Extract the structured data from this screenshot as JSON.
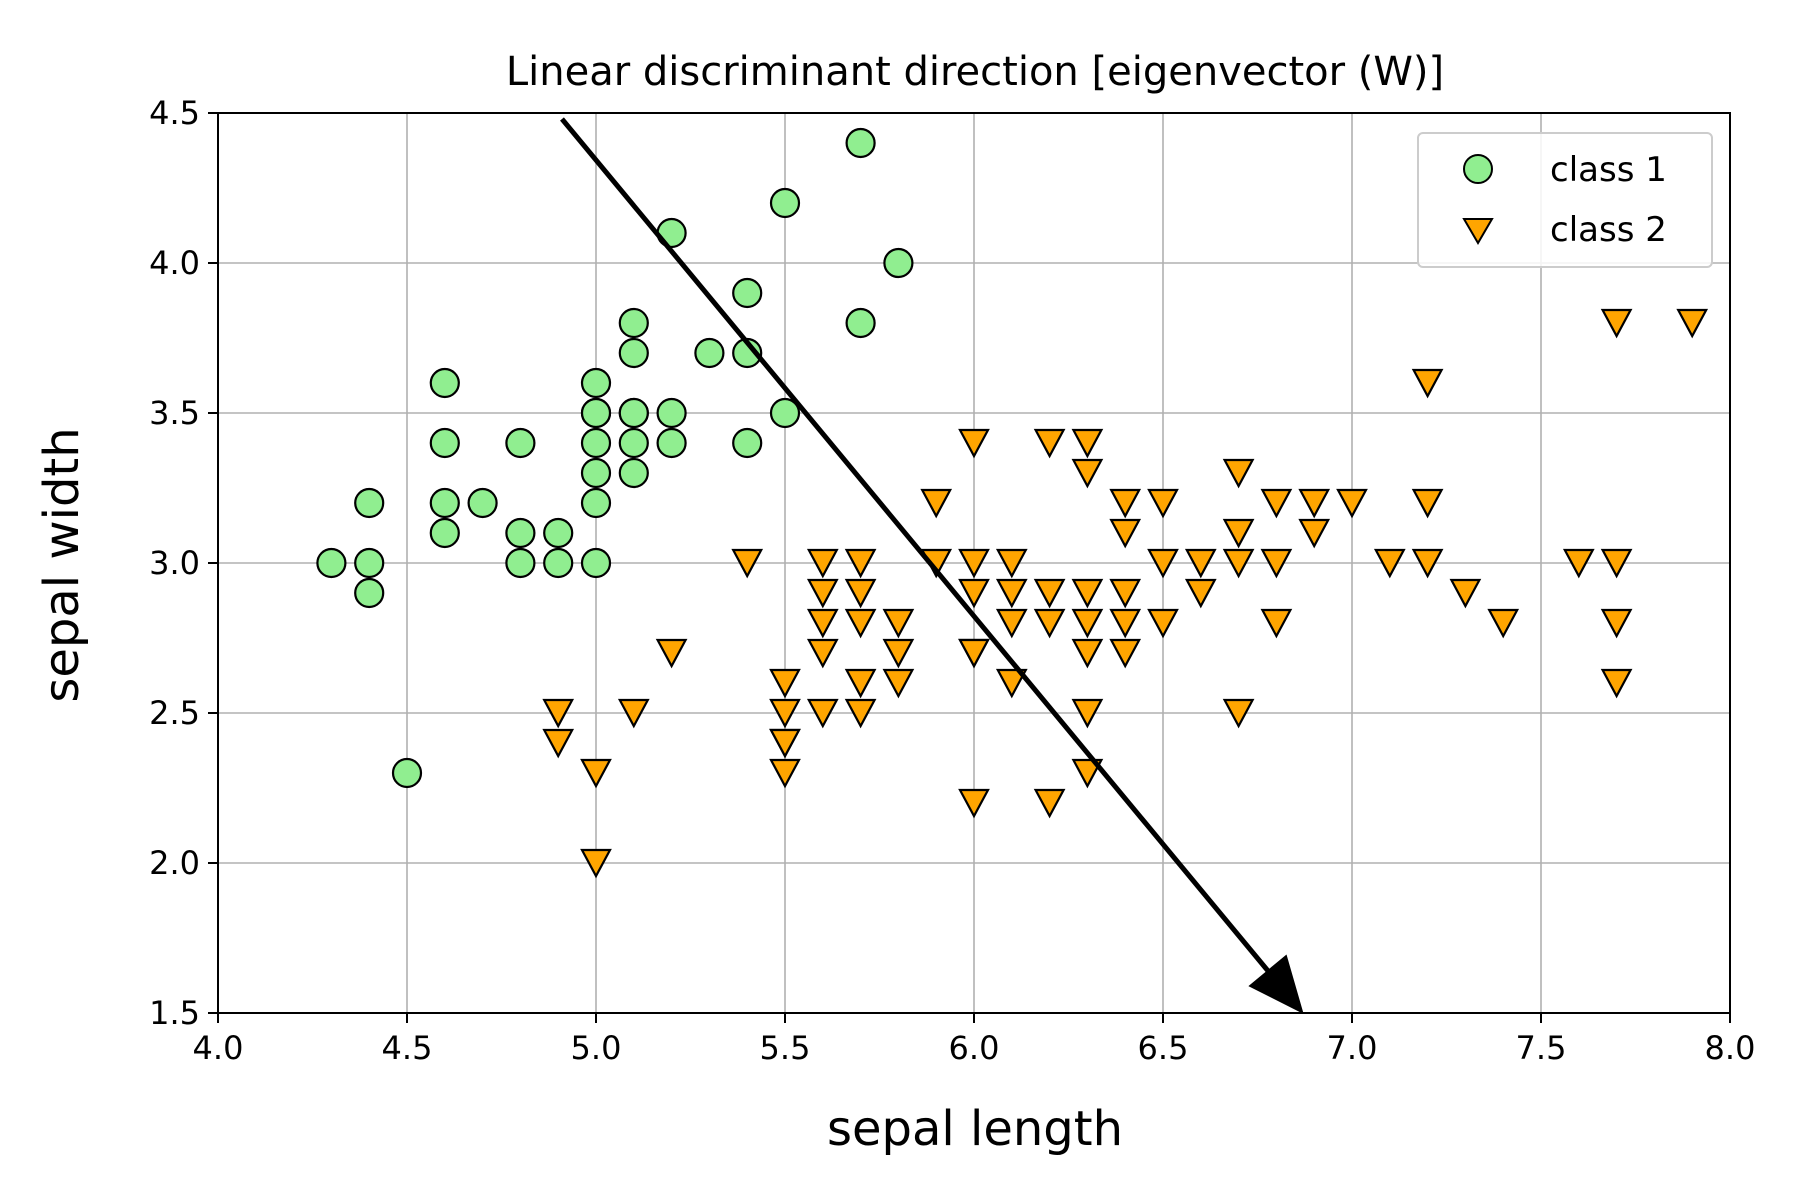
{
  "chart_data": {
    "type": "scatter",
    "title": "Linear discriminant direction [eigenvector (W)]",
    "xlabel": "sepal length",
    "ylabel": "sepal width",
    "xlim": [
      4.0,
      8.0
    ],
    "ylim": [
      1.5,
      4.5
    ],
    "xticks": [
      "4.0",
      "4.5",
      "5.0",
      "5.5",
      "6.0",
      "6.5",
      "7.0",
      "7.5",
      "8.0"
    ],
    "yticks": [
      "1.5",
      "2.0",
      "2.5",
      "3.0",
      "3.5",
      "4.0",
      "4.5"
    ],
    "grid": true,
    "legend_position": "top-right",
    "series": [
      {
        "name": "class 1",
        "marker": "circle",
        "color": "#90EE90",
        "x": [
          4.3,
          4.4,
          4.4,
          4.4,
          4.5,
          4.6,
          4.6,
          4.6,
          4.6,
          4.7,
          4.8,
          4.8,
          4.8,
          4.9,
          4.9,
          5.0,
          5.0,
          5.0,
          5.0,
          5.0,
          5.0,
          5.0,
          5.1,
          5.1,
          5.1,
          5.1,
          5.1,
          5.1,
          5.2,
          5.2,
          5.2,
          5.3,
          5.4,
          5.4,
          5.4,
          5.5,
          5.5,
          5.7,
          5.7,
          5.8
        ],
        "y": [
          3.0,
          3.2,
          3.0,
          2.9,
          2.3,
          3.6,
          3.4,
          3.2,
          3.1,
          3.2,
          3.4,
          3.1,
          3.0,
          3.1,
          3.0,
          3.6,
          3.5,
          3.4,
          3.3,
          3.2,
          3.0,
          3.5,
          3.8,
          3.7,
          3.5,
          3.4,
          3.3,
          3.5,
          4.1,
          3.5,
          3.4,
          3.7,
          3.9,
          3.7,
          3.4,
          4.2,
          3.5,
          4.4,
          3.8,
          4.0
        ]
      },
      {
        "name": "class 2",
        "marker": "triangle-down",
        "color": "#FFA500",
        "x": [
          4.9,
          4.9,
          5.0,
          5.0,
          5.1,
          5.2,
          5.4,
          5.5,
          5.5,
          5.5,
          5.5,
          5.5,
          5.6,
          5.6,
          5.6,
          5.6,
          5.6,
          5.7,
          5.7,
          5.7,
          5.7,
          5.7,
          5.8,
          5.8,
          5.8,
          5.9,
          5.9,
          6.0,
          6.0,
          6.0,
          6.0,
          6.0,
          6.0,
          6.1,
          6.1,
          6.1,
          6.1,
          6.2,
          6.2,
          6.2,
          6.2,
          6.3,
          6.3,
          6.3,
          6.3,
          6.3,
          6.3,
          6.3,
          6.4,
          6.4,
          6.4,
          6.4,
          6.4,
          6.5,
          6.5,
          6.5,
          6.6,
          6.6,
          6.7,
          6.7,
          6.7,
          6.7,
          6.8,
          6.8,
          6.8,
          6.9,
          6.9,
          7.0,
          7.1,
          7.2,
          7.2,
          7.2,
          7.3,
          7.4,
          7.6,
          7.7,
          7.7,
          7.7,
          7.7,
          7.9
        ],
        "y": [
          2.5,
          2.4,
          2.3,
          2.0,
          2.5,
          2.7,
          3.0,
          2.6,
          2.5,
          2.4,
          2.3,
          2.4,
          3.0,
          2.9,
          2.8,
          2.7,
          2.5,
          3.0,
          2.9,
          2.8,
          2.6,
          2.5,
          2.8,
          2.7,
          2.6,
          3.2,
          3.0,
          3.4,
          3.0,
          2.9,
          2.7,
          2.2,
          2.7,
          3.0,
          2.9,
          2.8,
          2.6,
          3.4,
          2.9,
          2.8,
          2.2,
          3.4,
          3.3,
          2.9,
          2.8,
          2.7,
          2.5,
          2.3,
          3.2,
          3.1,
          2.9,
          2.8,
          2.7,
          3.2,
          3.0,
          2.8,
          3.0,
          2.9,
          3.3,
          3.1,
          3.0,
          2.5,
          3.2,
          3.0,
          2.8,
          3.2,
          3.1,
          3.2,
          3.0,
          3.6,
          3.2,
          3.0,
          2.9,
          2.8,
          3.0,
          3.8,
          3.0,
          2.8,
          2.6,
          3.8
        ]
      }
    ],
    "annotations": [
      {
        "type": "arrow",
        "start": [
          4.91,
          4.48
        ],
        "end": [
          6.87,
          1.5
        ],
        "color": "#000000"
      }
    ]
  }
}
